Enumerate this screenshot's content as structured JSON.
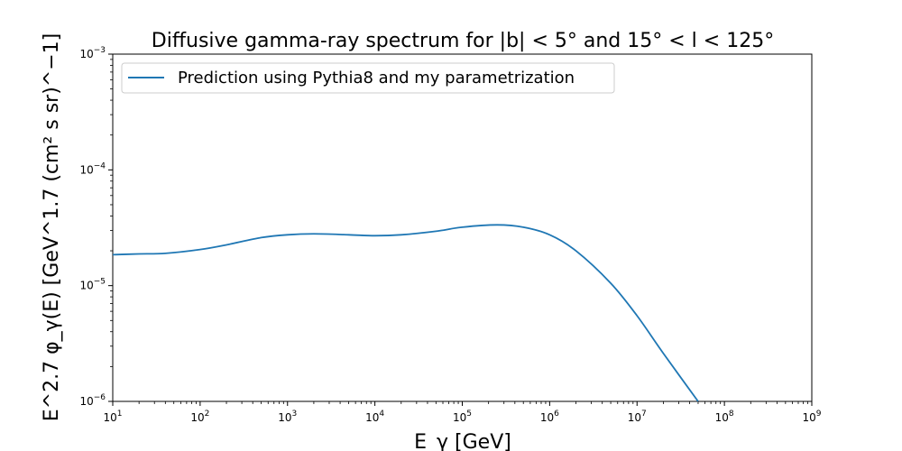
{
  "chart_data": {
    "type": "line",
    "title": "Diffusive gamma-ray spectrum for |b| < 5° and 15° < l < 125°",
    "xlabel": "E_γ [GeV]",
    "ylabel": "E^2.7 φ_γ(E) [GeV^1.7 (cm² s sr)^−1]",
    "xscale": "log",
    "yscale": "log",
    "xlim": [
      10,
      1000000000
    ],
    "ylim": [
      1e-06,
      0.001
    ],
    "grid": false,
    "legend_position": "top-left",
    "x_ticks": [
      {
        "base": "10",
        "exp": "1"
      },
      {
        "base": "10",
        "exp": "2"
      },
      {
        "base": "10",
        "exp": "3"
      },
      {
        "base": "10",
        "exp": "4"
      },
      {
        "base": "10",
        "exp": "5"
      },
      {
        "base": "10",
        "exp": "6"
      },
      {
        "base": "10",
        "exp": "7"
      },
      {
        "base": "10",
        "exp": "8"
      },
      {
        "base": "10",
        "exp": "9"
      }
    ],
    "y_ticks": [
      {
        "base": "10",
        "exp": "−6"
      },
      {
        "base": "10",
        "exp": "−5"
      },
      {
        "base": "10",
        "exp": "−4"
      },
      {
        "base": "10",
        "exp": "−3"
      }
    ],
    "series": [
      {
        "name": "Prediction using Pythia8 and my parametrization",
        "color": "#1f77b4",
        "x": [
          10,
          20,
          40,
          100,
          200,
          500,
          1000,
          2000,
          5000,
          10000,
          20000,
          50000,
          100000,
          250000,
          500000,
          1000000,
          2000000,
          5000000,
          10000000,
          20000000,
          50000000
        ],
        "y": [
          1.85e-05,
          1.88e-05,
          1.9e-05,
          2.05e-05,
          2.25e-05,
          2.6e-05,
          2.75e-05,
          2.8e-05,
          2.75e-05,
          2.7e-05,
          2.75e-05,
          2.95e-05,
          3.2e-05,
          3.35e-05,
          3.2e-05,
          2.75e-05,
          2e-05,
          1.05e-05,
          5.5e-06,
          2.6e-06,
          1e-06
        ]
      }
    ]
  }
}
